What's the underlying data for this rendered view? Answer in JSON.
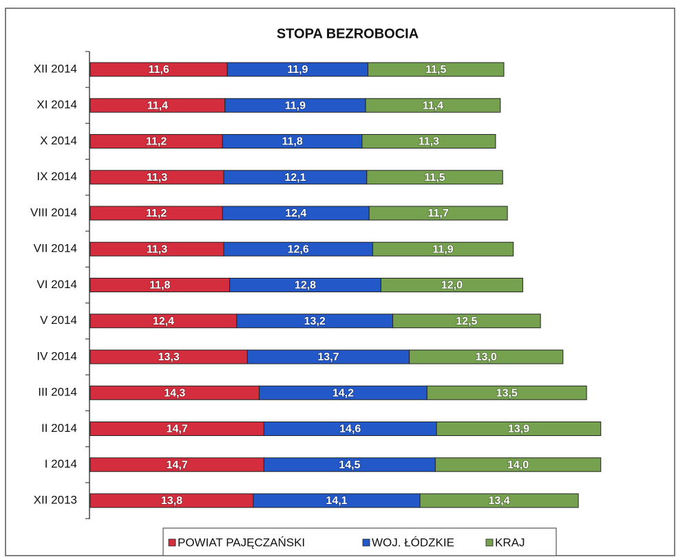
{
  "chart_data": {
    "type": "stacked-bar-horizontal",
    "title": "STOPA BEZROBOCIA",
    "categories": [
      "XII 2014",
      "XI 2014",
      "X 2014",
      "IX 2014",
      "VIII 2014",
      "VII 2014",
      "VI 2014",
      "V 2014",
      "IV 2014",
      "III 2014",
      "II 2014",
      "I 2014",
      "XII 2013"
    ],
    "series": [
      {
        "name": "POWIAT PAJĘCZAŃSKI",
        "color": "#d42e3e",
        "values": [
          11.6,
          11.4,
          11.2,
          11.3,
          11.2,
          11.3,
          11.8,
          12.4,
          13.3,
          14.3,
          14.7,
          14.7,
          13.8
        ],
        "value_labels": [
          "11,6",
          "11,4",
          "11,2",
          "11,3",
          "11,2",
          "11,3",
          "11,8",
          "12,4",
          "13,3",
          "14,3",
          "14,7",
          "14,7",
          "13,8"
        ]
      },
      {
        "name": "WOJ. ŁÓDZKIE",
        "color": "#2358c9",
        "values": [
          11.9,
          11.9,
          11.8,
          12.1,
          12.4,
          12.6,
          12.8,
          13.2,
          13.7,
          14.2,
          14.6,
          14.5,
          14.1
        ],
        "value_labels": [
          "11,9",
          "11,9",
          "11,8",
          "12,1",
          "12,4",
          "12,6",
          "12,8",
          "13,2",
          "13,7",
          "14,2",
          "14,6",
          "14,5",
          "14,1"
        ]
      },
      {
        "name": "KRAJ",
        "color": "#76a24f",
        "values": [
          11.5,
          11.4,
          11.3,
          11.5,
          11.7,
          11.9,
          12.0,
          12.5,
          13.0,
          13.5,
          13.9,
          14.0,
          13.4
        ],
        "value_labels": [
          "11,5",
          "11,4",
          "11,3",
          "11,5",
          "11,7",
          "11,9",
          "12,0",
          "12,5",
          "13,0",
          "13,5",
          "13,9",
          "14,0",
          "13,4"
        ]
      }
    ]
  }
}
